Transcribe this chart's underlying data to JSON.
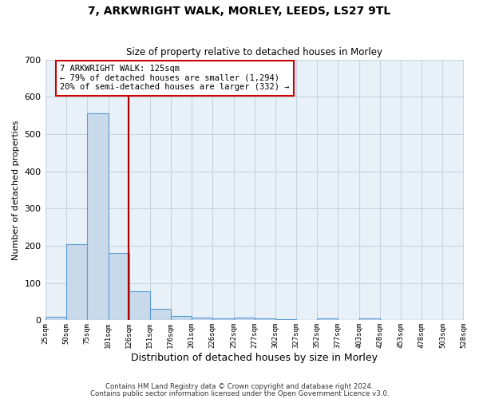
{
  "title1": "7, ARKWRIGHT WALK, MORLEY, LEEDS, LS27 9TL",
  "title2": "Size of property relative to detached houses in Morley",
  "xlabel": "Distribution of detached houses by size in Morley",
  "ylabel": "Number of detached properties",
  "bin_edges": [
    25,
    50,
    75,
    101,
    126,
    151,
    176,
    201,
    226,
    252,
    277,
    302,
    327,
    352,
    377,
    403,
    428,
    453,
    478,
    503,
    528
  ],
  "bar_heights": [
    10,
    205,
    555,
    180,
    78,
    30,
    12,
    8,
    5,
    8,
    5,
    3,
    0,
    5,
    0,
    5,
    0,
    0,
    0,
    0
  ],
  "bar_color": "#c8d9ea",
  "bar_edge_color": "#5b9bd5",
  "grid_color": "#c8d4e0",
  "vline_x": 125,
  "vline_color": "#aa0000",
  "annotation_text": "7 ARKWRIGHT WALK: 125sqm\n← 79% of detached houses are smaller (1,294)\n20% of semi-detached houses are larger (332) →",
  "annotation_box_color": "#ffffff",
  "annotation_box_edge": "#cc0000",
  "ylim": [
    0,
    700
  ],
  "yticks": [
    0,
    100,
    200,
    300,
    400,
    500,
    600,
    700
  ],
  "tick_labels": [
    "25sqm",
    "50sqm",
    "75sqm",
    "101sqm",
    "126sqm",
    "151sqm",
    "176sqm",
    "201sqm",
    "226sqm",
    "252sqm",
    "277sqm",
    "302sqm",
    "327sqm",
    "352sqm",
    "377sqm",
    "403sqm",
    "428sqm",
    "453sqm",
    "478sqm",
    "503sqm",
    "528sqm"
  ],
  "footer1": "Contains HM Land Registry data © Crown copyright and database right 2024.",
  "footer2": "Contains public sector information licensed under the Open Government Licence v3.0.",
  "bg_color": "#ffffff",
  "plot_bg_color": "#e8f0f8"
}
